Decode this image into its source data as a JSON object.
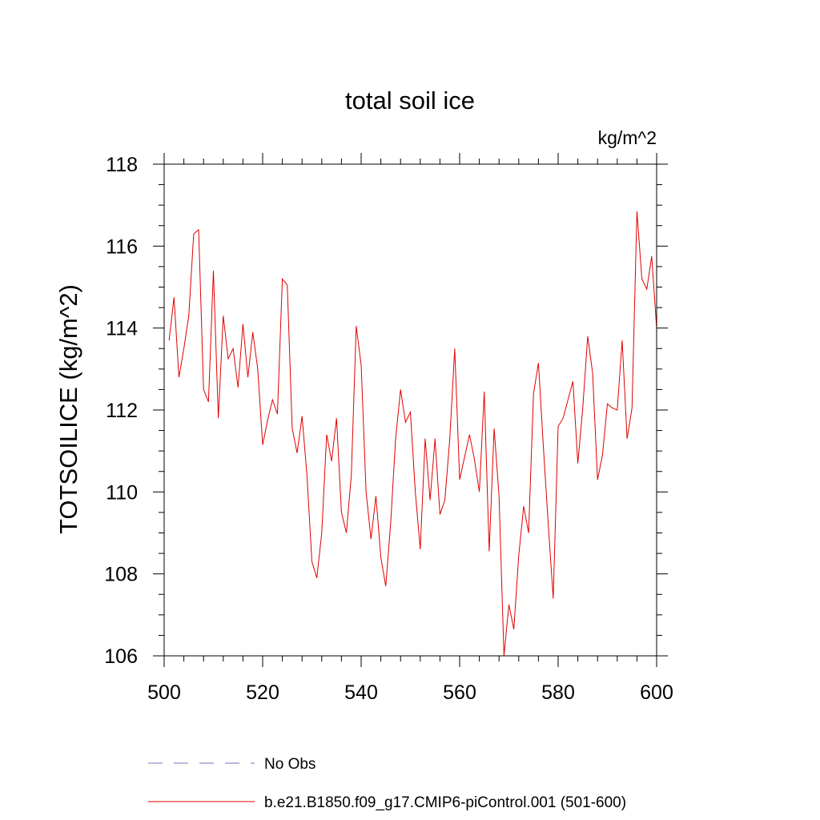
{
  "chart_data": {
    "type": "line",
    "title": "total soil ice",
    "units_label": "kg/m^2",
    "xlabel": "",
    "ylabel": "TOTSOILICE  (kg/m^2)",
    "xlim": [
      500,
      600
    ],
    "ylim": [
      106,
      118
    ],
    "x_ticks": [
      500,
      520,
      540,
      560,
      580,
      600
    ],
    "y_ticks": [
      106,
      108,
      110,
      112,
      114,
      116,
      118
    ],
    "grid": false,
    "legend_position": "bottom",
    "series": [
      {
        "name": "b.e21.B1850.f09_g17.CMIP6-piControl.001 (501-600)",
        "color": "#e00000",
        "style": "solid",
        "x": [
          501,
          502,
          503,
          504,
          505,
          506,
          507,
          508,
          509,
          510,
          511,
          512,
          513,
          514,
          515,
          516,
          517,
          518,
          519,
          520,
          521,
          522,
          523,
          524,
          525,
          526,
          527,
          528,
          529,
          530,
          531,
          532,
          533,
          534,
          535,
          536,
          537,
          538,
          539,
          540,
          541,
          542,
          543,
          544,
          545,
          546,
          547,
          548,
          549,
          550,
          551,
          552,
          553,
          554,
          555,
          556,
          557,
          558,
          559,
          560,
          561,
          562,
          563,
          564,
          565,
          566,
          567,
          568,
          569,
          570,
          571,
          572,
          573,
          574,
          575,
          576,
          577,
          578,
          579,
          580,
          581,
          582,
          583,
          584,
          585,
          586,
          587,
          588,
          589,
          590,
          591,
          592,
          593,
          594,
          595,
          596,
          597,
          598,
          599,
          600
        ],
        "values": [
          113.7,
          114.75,
          112.8,
          113.5,
          114.3,
          116.3,
          116.4,
          112.5,
          112.2,
          115.4,
          111.8,
          114.3,
          113.25,
          113.5,
          112.55,
          114.1,
          112.8,
          113.9,
          113.0,
          111.15,
          111.75,
          112.25,
          111.9,
          115.2,
          115.05,
          111.55,
          110.95,
          111.85,
          110.4,
          108.3,
          107.9,
          109.0,
          111.4,
          110.75,
          111.8,
          109.5,
          109.0,
          110.4,
          114.05,
          113.1,
          110.0,
          108.85,
          109.9,
          108.4,
          107.7,
          109.25,
          111.3,
          112.5,
          111.7,
          111.95,
          110.0,
          108.6,
          111.3,
          109.8,
          111.3,
          109.45,
          109.8,
          111.3,
          113.5,
          110.3,
          110.85,
          111.4,
          110.8,
          110.0,
          112.45,
          108.55,
          111.55,
          109.9,
          106.0,
          107.25,
          106.65,
          108.45,
          109.65,
          109.0,
          112.4,
          113.15,
          111.1,
          109.2,
          107.4,
          111.6,
          111.8,
          112.25,
          112.7,
          110.7,
          112.05,
          113.8,
          112.9,
          110.3,
          110.9,
          112.15,
          112.05,
          112.0,
          113.7,
          111.3,
          112.05,
          116.85,
          115.2,
          114.95,
          115.75,
          114.0
        ]
      },
      {
        "name": "No Obs",
        "color": "#7b6fb8",
        "style": "dashed",
        "x": [],
        "values": []
      }
    ]
  }
}
